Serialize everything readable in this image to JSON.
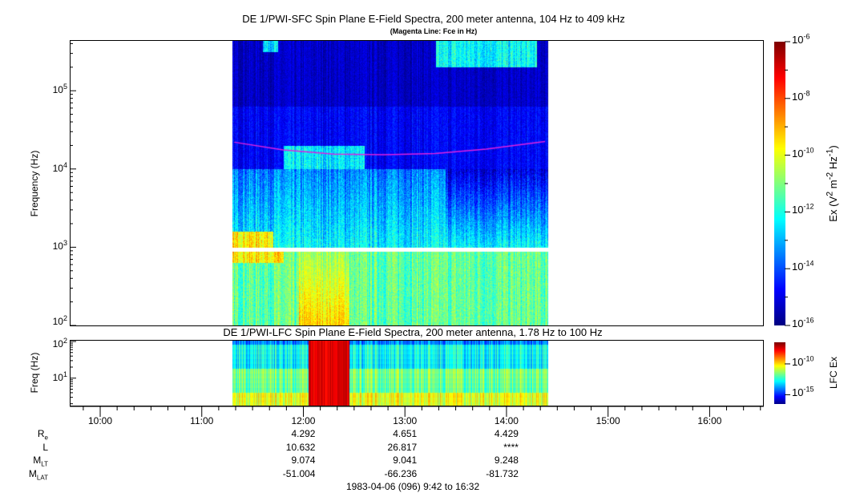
{
  "chart_data": [
    {
      "type": "heatmap",
      "title": "DE 1/PWI-SFC  Spin Plane E-Field Spectra, 200 meter antenna, 104 Hz to 409 kHz",
      "subtitle": "(Magenta Line: Fce in Hz)",
      "ylabel": "Frequency (Hz)",
      "yscale": "log",
      "ylim": [
        100,
        409000
      ],
      "ytick_labels": [
        {
          "base": "10",
          "exp": "2",
          "value": 100
        },
        {
          "base": "10",
          "exp": "3",
          "value": 1000
        },
        {
          "base": "10",
          "exp": "4",
          "value": 10000
        },
        {
          "base": "10",
          "exp": "5",
          "value": 100000
        }
      ],
      "xlim_hours": [
        9.7,
        16.5333
      ],
      "data_coverage_hours": [
        11.3,
        14.4
      ],
      "data_gap_hz": [
        880,
        1000
      ],
      "overlay": {
        "name": "Fce",
        "color": "#e020e0",
        "x_hours": [
          11.32,
          11.8,
          12.3,
          12.8,
          13.3,
          13.8,
          14.38
        ],
        "y_hz": [
          22000,
          17500,
          15500,
          15200,
          15800,
          18000,
          22500
        ]
      },
      "colorbar": {
        "label_prefix": "Ex (V",
        "label": "Ex (V2 m-2 Hz-1)",
        "scale": "log",
        "range_exp": [
          -16,
          -6
        ],
        "tick_labels": [
          {
            "base": "10",
            "exp": "-6"
          },
          {
            "base": "10",
            "exp": "-8"
          },
          {
            "base": "10",
            "exp": "-10"
          },
          {
            "base": "10",
            "exp": "-12"
          },
          {
            "base": "10",
            "exp": "-14"
          },
          {
            "base": "10",
            "exp": "-16"
          }
        ]
      }
    },
    {
      "type": "heatmap",
      "title": "DE 1/PWI-LFC  Spin Plane E-Field Spectra, 200 meter antenna, 1.78 Hz to 100 Hz",
      "ylabel": "Freq (Hz)",
      "yscale": "log",
      "ylim": [
        1.78,
        100
      ],
      "ytick_labels": [
        {
          "base": "10",
          "exp": "1",
          "value": 10
        },
        {
          "base": "10",
          "exp": "2",
          "value": 100
        }
      ],
      "colorbar": {
        "label": "LFC Ex",
        "scale": "log",
        "range_exp": [
          -16.5,
          -6.5
        ],
        "tick_labels": [
          {
            "base": "10",
            "exp": "-10",
            "value": -10
          },
          {
            "base": "10",
            "exp": "-15",
            "value": -15
          }
        ]
      }
    }
  ],
  "x_axis": {
    "tick_labels": [
      "10:00",
      "11:00",
      "12:00",
      "13:00",
      "14:00",
      "15:00",
      "16:00"
    ],
    "tick_hours": [
      10,
      11,
      12,
      13,
      14,
      15,
      16
    ]
  },
  "ephemeris": {
    "rows": [
      {
        "label": "R",
        "sub": "e",
        "values": [
          "4.292",
          "4.651",
          "4.429"
        ]
      },
      {
        "label": "L",
        "sub": "",
        "values": [
          "10.632",
          "26.817",
          "****"
        ]
      },
      {
        "label": "M",
        "sub": "LT",
        "values": [
          "9.074",
          "9.041",
          "9.248"
        ]
      },
      {
        "label": "M",
        "sub": "LAT",
        "values": [
          "-51.004",
          "-66.236",
          "-81.732"
        ]
      }
    ],
    "date_range": "1983-04-06 (096) 9:42 to 16:32"
  }
}
